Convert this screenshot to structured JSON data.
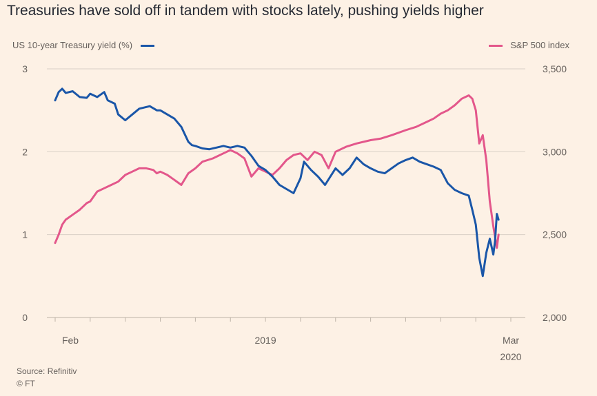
{
  "title": "Treasuries have sold off in tandem with stocks lately, pushing yields higher",
  "legend": {
    "left": "US 10-year Treasury yield (%)",
    "right": "S&P 500 index"
  },
  "source": "Source: Refinitiv",
  "credit": "© FT",
  "colors": {
    "background": "#fdf1e5",
    "yield": "#1a56a8",
    "sp500": "#e3578b",
    "grid": "#d9d0c6"
  },
  "chart_data": {
    "type": "line",
    "title": "Treasuries have sold off in tandem with stocks lately, pushing yields higher",
    "xlabel": "",
    "x_range": [
      "2019-02-01",
      "2020-03-31"
    ],
    "x_ticks": [
      {
        "date": "2019-02",
        "label": "Feb",
        "sublabel": ""
      },
      {
        "date": "2019-03",
        "label": "",
        "sublabel": ""
      },
      {
        "date": "2019-04",
        "label": "",
        "sublabel": ""
      },
      {
        "date": "2019-05",
        "label": "",
        "sublabel": ""
      },
      {
        "date": "2019-06",
        "label": "",
        "sublabel": ""
      },
      {
        "date": "2019-07",
        "label": "",
        "sublabel": ""
      },
      {
        "date": "2019-08",
        "label": "2019",
        "sublabel": ""
      },
      {
        "date": "2019-09",
        "label": "",
        "sublabel": ""
      },
      {
        "date": "2019-10",
        "label": "",
        "sublabel": ""
      },
      {
        "date": "2019-11",
        "label": "",
        "sublabel": ""
      },
      {
        "date": "2019-12",
        "label": "",
        "sublabel": ""
      },
      {
        "date": "2020-01",
        "label": "",
        "sublabel": ""
      },
      {
        "date": "2020-02",
        "label": "",
        "sublabel": ""
      },
      {
        "date": "2020-03",
        "label": "Mar",
        "sublabel": "2020"
      }
    ],
    "y_left": {
      "label": "US 10-year Treasury yield (%)",
      "ylim": [
        0,
        3
      ],
      "ticks": [
        0,
        1,
        2,
        3
      ],
      "tick_labels": [
        "0",
        "1",
        "2",
        "3"
      ]
    },
    "y_right": {
      "label": "S&P 500 index",
      "ylim": [
        2000,
        3500
      ],
      "ticks": [
        2000,
        2500,
        3000,
        3500
      ],
      "tick_labels": [
        "2,000",
        "2,500",
        "3,000",
        "3,500"
      ]
    },
    "grid": "horizontal",
    "series": [
      {
        "name": "US 10-year Treasury yield (%)",
        "axis": "left",
        "points": [
          [
            0.0,
            2.62
          ],
          [
            0.1,
            2.72
          ],
          [
            0.2,
            2.76
          ],
          [
            0.3,
            2.71
          ],
          [
            0.5,
            2.73
          ],
          [
            0.7,
            2.66
          ],
          [
            0.9,
            2.65
          ],
          [
            1.0,
            2.7
          ],
          [
            1.2,
            2.66
          ],
          [
            1.4,
            2.72
          ],
          [
            1.5,
            2.62
          ],
          [
            1.7,
            2.58
          ],
          [
            1.8,
            2.45
          ],
          [
            2.0,
            2.38
          ],
          [
            2.2,
            2.45
          ],
          [
            2.4,
            2.52
          ],
          [
            2.7,
            2.55
          ],
          [
            2.9,
            2.5
          ],
          [
            3.0,
            2.5
          ],
          [
            3.2,
            2.45
          ],
          [
            3.4,
            2.4
          ],
          [
            3.6,
            2.3
          ],
          [
            3.8,
            2.12
          ],
          [
            3.9,
            2.08
          ],
          [
            4.0,
            2.07
          ],
          [
            4.2,
            2.04
          ],
          [
            4.4,
            2.03
          ],
          [
            4.6,
            2.05
          ],
          [
            4.8,
            2.07
          ],
          [
            5.0,
            2.05
          ],
          [
            5.2,
            2.07
          ],
          [
            5.4,
            2.05
          ],
          [
            5.6,
            1.95
          ],
          [
            5.8,
            1.83
          ],
          [
            6.0,
            1.78
          ],
          [
            6.2,
            1.7
          ],
          [
            6.4,
            1.6
          ],
          [
            6.6,
            1.55
          ],
          [
            6.8,
            1.5
          ],
          [
            7.0,
            1.68
          ],
          [
            7.1,
            1.88
          ],
          [
            7.3,
            1.78
          ],
          [
            7.5,
            1.7
          ],
          [
            7.7,
            1.6
          ],
          [
            8.0,
            1.8
          ],
          [
            8.2,
            1.72
          ],
          [
            8.4,
            1.8
          ],
          [
            8.6,
            1.93
          ],
          [
            8.8,
            1.85
          ],
          [
            9.0,
            1.8
          ],
          [
            9.2,
            1.76
          ],
          [
            9.4,
            1.74
          ],
          [
            9.6,
            1.8
          ],
          [
            9.8,
            1.86
          ],
          [
            10.0,
            1.9
          ],
          [
            10.2,
            1.93
          ],
          [
            10.4,
            1.88
          ],
          [
            10.6,
            1.85
          ],
          [
            10.8,
            1.82
          ],
          [
            11.0,
            1.78
          ],
          [
            11.2,
            1.62
          ],
          [
            11.4,
            1.54
          ],
          [
            11.6,
            1.5
          ],
          [
            11.8,
            1.47
          ],
          [
            11.9,
            1.3
          ],
          [
            12.0,
            1.12
          ],
          [
            12.1,
            0.72
          ],
          [
            12.2,
            0.5
          ],
          [
            12.3,
            0.78
          ],
          [
            12.4,
            0.95
          ],
          [
            12.5,
            0.76
          ],
          [
            12.55,
            0.92
          ],
          [
            12.6,
            1.25
          ],
          [
            12.65,
            1.18
          ]
        ]
      },
      {
        "name": "S&P 500 index",
        "axis": "right",
        "points": [
          [
            0.0,
            2450
          ],
          [
            0.1,
            2500
          ],
          [
            0.2,
            2560
          ],
          [
            0.3,
            2590
          ],
          [
            0.5,
            2620
          ],
          [
            0.7,
            2650
          ],
          [
            0.9,
            2690
          ],
          [
            1.0,
            2700
          ],
          [
            1.2,
            2760
          ],
          [
            1.4,
            2780
          ],
          [
            1.6,
            2800
          ],
          [
            1.8,
            2820
          ],
          [
            2.0,
            2860
          ],
          [
            2.2,
            2880
          ],
          [
            2.4,
            2900
          ],
          [
            2.6,
            2900
          ],
          [
            2.8,
            2890
          ],
          [
            2.9,
            2870
          ],
          [
            3.0,
            2880
          ],
          [
            3.2,
            2860
          ],
          [
            3.4,
            2830
          ],
          [
            3.6,
            2800
          ],
          [
            3.8,
            2870
          ],
          [
            4.0,
            2900
          ],
          [
            4.2,
            2940
          ],
          [
            4.5,
            2960
          ],
          [
            4.8,
            2990
          ],
          [
            5.0,
            3010
          ],
          [
            5.2,
            2990
          ],
          [
            5.4,
            2960
          ],
          [
            5.6,
            2850
          ],
          [
            5.8,
            2900
          ],
          [
            6.0,
            2880
          ],
          [
            6.2,
            2860
          ],
          [
            6.4,
            2900
          ],
          [
            6.6,
            2950
          ],
          [
            6.8,
            2980
          ],
          [
            7.0,
            2990
          ],
          [
            7.2,
            2950
          ],
          [
            7.4,
            3000
          ],
          [
            7.6,
            2980
          ],
          [
            7.8,
            2900
          ],
          [
            8.0,
            3000
          ],
          [
            8.3,
            3030
          ],
          [
            8.6,
            3050
          ],
          [
            9.0,
            3070
          ],
          [
            9.3,
            3080
          ],
          [
            9.6,
            3100
          ],
          [
            10.0,
            3130
          ],
          [
            10.3,
            3150
          ],
          [
            10.6,
            3180
          ],
          [
            10.8,
            3200
          ],
          [
            11.0,
            3230
          ],
          [
            11.2,
            3250
          ],
          [
            11.4,
            3280
          ],
          [
            11.6,
            3320
          ],
          [
            11.8,
            3340
          ],
          [
            11.9,
            3320
          ],
          [
            12.0,
            3250
          ],
          [
            12.1,
            3050
          ],
          [
            12.2,
            3100
          ],
          [
            12.3,
            2950
          ],
          [
            12.4,
            2700
          ],
          [
            12.5,
            2550
          ],
          [
            12.6,
            2420
          ],
          [
            12.65,
            2500
          ]
        ]
      }
    ]
  }
}
